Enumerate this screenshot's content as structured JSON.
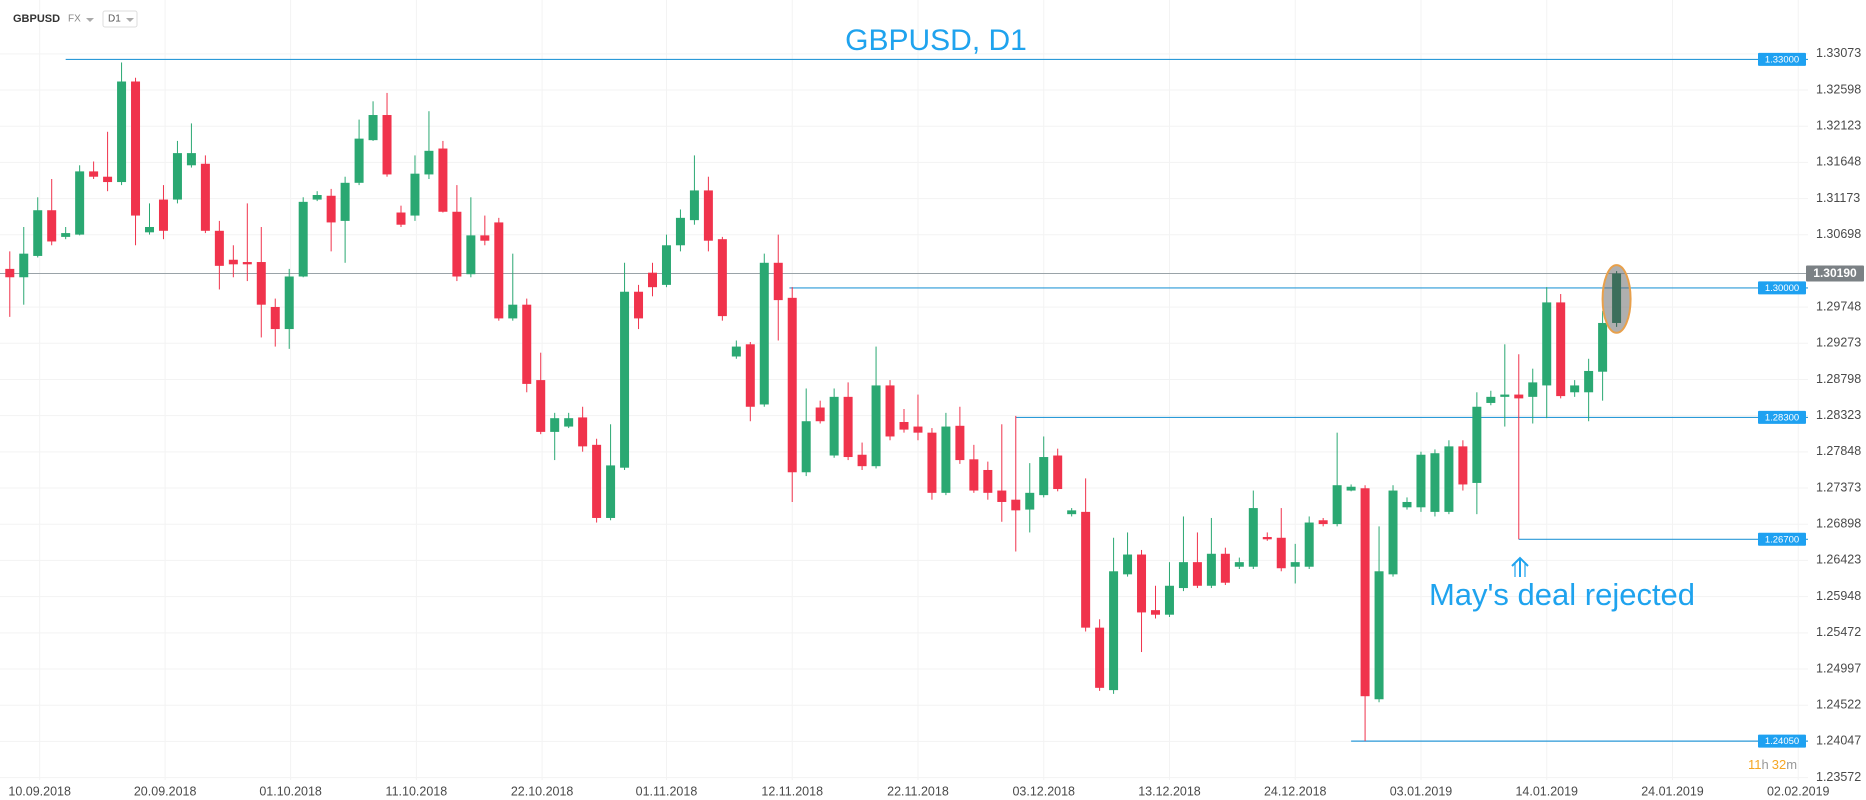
{
  "header": {
    "symbol": "GBPUSD",
    "market": "FX",
    "interval": "D1"
  },
  "chart_data": {
    "type": "candlestick",
    "title": "GBPUSD, D1",
    "annotation": "May's deal rejected",
    "up_color": "#2aa872",
    "down_color": "#f0334c",
    "current_color": "#3c6e5c",
    "level_color": "#2b9ad8",
    "grid": true,
    "xlim": [
      -0.7,
      128.7
    ],
    "xticks": [
      {
        "value": 2.14,
        "label": "10.09.2018"
      },
      {
        "value": 11.12,
        "label": "20.09.2018"
      },
      {
        "value": 20.1,
        "label": "01.10.2018"
      },
      {
        "value": 29.1,
        "label": "11.10.2018"
      },
      {
        "value": 38.1,
        "label": "22.10.2018"
      },
      {
        "value": 47.0,
        "label": "01.11.2018"
      },
      {
        "value": 56.0,
        "label": "12.11.2018"
      },
      {
        "value": 65.0,
        "label": "22.11.2018"
      },
      {
        "value": 74.0,
        "label": "03.12.2018"
      },
      {
        "value": 83.0,
        "label": "13.12.2018"
      },
      {
        "value": 92.0,
        "label": "24.12.2018"
      },
      {
        "value": 101.0,
        "label": "03.01.2019"
      },
      {
        "value": 110.0,
        "label": "14.01.2019"
      },
      {
        "value": 119.0,
        "label": "24.01.2019"
      },
      {
        "value": 128.0,
        "label": "02.02.2019"
      }
    ],
    "ylim": [
      1.2354,
      1.3378
    ],
    "yticks": [
      1.33073,
      1.32598,
      1.32123,
      1.31648,
      1.31173,
      1.30698,
      1.29748,
      1.29273,
      1.28798,
      1.28323,
      1.27848,
      1.27373,
      1.26898,
      1.26423,
      1.25948,
      1.25472,
      1.24997,
      1.24522,
      1.24047,
      1.23572
    ],
    "open": [
      1.3025,
      1.3014,
      1.3042,
      1.3102,
      1.3067,
      1.307,
      1.3153,
      1.3146,
      1.3139,
      1.3271,
      1.3073,
      1.3116,
      1.3116,
      1.3161,
      1.3163,
      1.3075,
      1.3037,
      1.3034,
      1.3034,
      1.2975,
      1.2946,
      1.3015,
      1.3116,
      1.3121,
      1.3088,
      1.3138,
      1.3194,
      1.3227,
      1.3099,
      1.3095,
      1.3149,
      1.3183,
      1.31,
      1.3018,
      1.3069,
      1.3086,
      1.296,
      1.2978,
      1.2879,
      1.2811,
      1.2818,
      1.283,
      1.2794,
      1.2698,
      1.2764,
      1.2995,
      1.302,
      1.3004,
      1.3056,
      1.3089,
      1.3128,
      1.3064,
      1.291,
      1.2926,
      1.2847,
      1.3033,
      1.2987,
      1.2758,
      1.2843,
      1.278,
      1.2857,
      1.2781,
      1.2766,
      1.2872,
      1.2824,
      1.2818,
      1.281,
      1.2731,
      1.2819,
      1.2775,
      1.2761,
      1.2734,
      1.2722,
      1.2709,
      1.2728,
      1.278,
      1.2703,
      1.2706,
      1.2554,
      1.2472,
      1.2624,
      1.265,
      1.2577,
      1.2571,
      1.2606,
      1.264,
      1.2609,
      1.2651,
      1.2634,
      1.2634,
      1.2673,
      1.2672,
      1.2634,
      1.2634,
      1.2695,
      1.269,
      1.2734,
      1.2737,
      1.246,
      1.2624,
      1.2712,
      1.2712,
      1.2706,
      1.2706,
      1.2792,
      1.2744,
      1.2849,
      1.2857,
      1.286,
      1.2857,
      1.2872,
      1.2981,
      1.2863,
      1.2863,
      1.289,
      1.2954
    ],
    "high": [
      1.3048,
      1.308,
      1.3119,
      1.3143,
      1.308,
      1.3161,
      1.3166,
      1.3205,
      1.3296,
      1.3276,
      1.3111,
      1.3135,
      1.3193,
      1.3216,
      1.3174,
      1.3088,
      1.3056,
      1.3111,
      1.308,
      1.2986,
      1.3025,
      1.3119,
      1.3127,
      1.313,
      1.3146,
      1.3221,
      1.3245,
      1.3256,
      1.3108,
      1.3174,
      1.3232,
      1.3193,
      1.3135,
      1.3119,
      1.3095,
      1.3092,
      1.3045,
      1.2986,
      1.2915,
      1.2836,
      1.2836,
      1.2844,
      1.2802,
      1.2821,
      1.3033,
      1.3004,
      1.3033,
      1.307,
      1.3103,
      1.3174,
      1.3146,
      1.3067,
      1.2931,
      1.2929,
      1.3045,
      1.307,
      1.3001,
      1.2868,
      1.2852,
      1.2868,
      1.2876,
      1.2797,
      1.2923,
      1.2879,
      1.2841,
      1.286,
      1.2816,
      1.2836,
      1.2844,
      1.2794,
      1.2772,
      1.2821,
      1.2832,
      1.277,
      1.2805,
      1.2789,
      1.2711,
      1.275,
      1.2565,
      1.2672,
      1.2679,
      1.2656,
      1.2609,
      1.264,
      1.27,
      1.2679,
      1.2698,
      1.2659,
      1.2646,
      1.2734,
      1.2679,
      1.2711,
      1.2664,
      1.27,
      1.2698,
      1.281,
      1.2742,
      1.2741,
      1.2687,
      1.2741,
      1.2725,
      1.2785,
      1.2788,
      1.28,
      1.28,
      1.2863,
      1.2865,
      1.2926,
      1.2913,
      1.2894,
      1.3001,
      1.2992,
      1.2879,
      1.2907,
      1.297,
      1.3022
    ],
    "low": [
      1.2962,
      1.2978,
      1.304,
      1.3056,
      1.3064,
      1.3069,
      1.3143,
      1.3127,
      1.3135,
      1.3056,
      1.307,
      1.3064,
      1.3111,
      1.3158,
      1.3072,
      1.2998,
      1.3014,
      1.3009,
      1.2935,
      1.2923,
      1.292,
      1.3014,
      1.3114,
      1.3048,
      1.3033,
      1.3135,
      1.3193,
      1.3146,
      1.308,
      1.3088,
      1.3143,
      1.3099,
      1.3009,
      1.3014,
      1.3056,
      1.2957,
      1.2957,
      1.2863,
      1.2808,
      1.2774,
      1.2816,
      1.2785,
      1.2692,
      1.2695,
      1.2761,
      1.2946,
      1.2989,
      1.3001,
      1.3048,
      1.3083,
      1.3048,
      1.2957,
      1.2907,
      1.2825,
      1.2844,
      1.2931,
      1.2719,
      1.2753,
      1.2822,
      1.2777,
      1.2774,
      1.2761,
      1.2763,
      1.28,
      1.281,
      1.28,
      1.2722,
      1.2728,
      1.2769,
      1.2731,
      1.2722,
      1.2693,
      1.2654,
      1.2679,
      1.2725,
      1.2733,
      1.27,
      1.2549,
      1.2471,
      1.2467,
      1.2621,
      1.2522,
      1.2566,
      1.2568,
      1.2602,
      1.2606,
      1.2606,
      1.261,
      1.2631,
      1.2631,
      1.2668,
      1.2628,
      1.2612,
      1.2631,
      1.2687,
      1.2687,
      1.2733,
      1.2405,
      1.2456,
      1.2621,
      1.2709,
      1.2706,
      1.27,
      1.2703,
      1.2734,
      1.2703,
      1.2846,
      1.2818,
      1.267,
      1.2822,
      1.2829,
      1.2855,
      1.2857,
      1.2825,
      1.2852,
      1.2949
    ],
    "close": [
      1.3014,
      1.3045,
      1.3102,
      1.3061,
      1.3072,
      1.3153,
      1.3146,
      1.3139,
      1.3271,
      1.3095,
      1.308,
      1.3075,
      1.3177,
      1.3177,
      1.3075,
      1.3029,
      1.3031,
      1.3031,
      1.2978,
      1.2946,
      1.3015,
      1.3113,
      1.3122,
      1.3086,
      1.3138,
      1.3196,
      1.3227,
      1.3149,
      1.3083,
      1.315,
      1.318,
      1.31,
      1.3015,
      1.3069,
      1.3062,
      1.296,
      1.2978,
      1.2874,
      1.2811,
      1.2829,
      1.2829,
      1.2792,
      1.2698,
      1.2767,
      1.2995,
      1.296,
      1.3001,
      1.3056,
      1.3092,
      1.3128,
      1.3062,
      1.2963,
      1.2923,
      1.2844,
      1.3033,
      1.2984,
      1.2758,
      1.2825,
      1.2825,
      1.2857,
      1.2778,
      1.2766,
      1.2872,
      1.2805,
      1.2814,
      1.281,
      1.2731,
      1.2818,
      1.2774,
      1.2734,
      1.2731,
      1.2719,
      1.2708,
      1.2731,
      1.2778,
      1.2736,
      1.2708,
      1.2554,
      1.2475,
      1.2628,
      1.265,
      1.2574,
      1.2571,
      1.2609,
      1.264,
      1.2609,
      1.2651,
      1.2613,
      1.264,
      1.2711,
      1.267,
      1.2632,
      1.264,
      1.2692,
      1.269,
      1.2741,
      1.2739,
      1.2464,
      1.2628,
      1.2734,
      1.2719,
      1.2781,
      1.2783,
      1.2792,
      1.2742,
      1.2844,
      1.2857,
      1.286,
      1.2855,
      1.2876,
      1.2981,
      1.2858,
      1.2872,
      1.2891,
      1.2954,
      1.3019
    ],
    "levels": [
      {
        "value": 1.33,
        "label": "1.33000"
      },
      {
        "value": 1.3,
        "label": "1.30000"
      },
      {
        "value": 1.283,
        "label": "1.28300"
      },
      {
        "value": 1.267,
        "label": "1.26700"
      },
      {
        "value": 1.2405,
        "label": "1.24050"
      }
    ],
    "current_price": {
      "value": 1.3019,
      "label": "1.30190"
    },
    "timer": [
      "11",
      "h",
      "32",
      "m"
    ]
  }
}
